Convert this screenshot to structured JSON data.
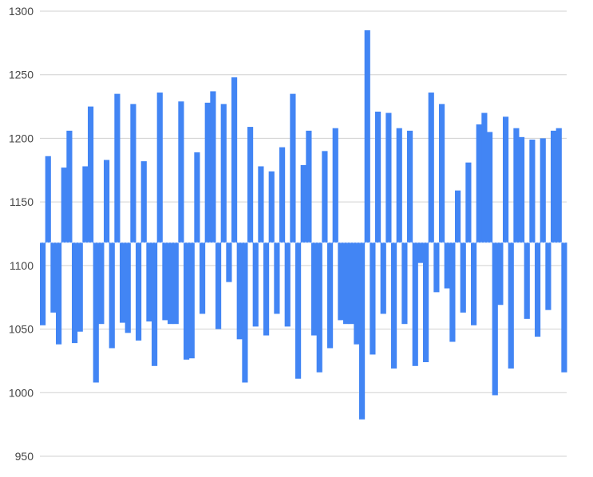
{
  "chart_data": {
    "type": "bar",
    "title": "",
    "xlabel": "",
    "ylabel": "",
    "ylim": [
      950,
      1300
    ],
    "yticks": [
      950,
      1000,
      1050,
      1100,
      1150,
      1200,
      1250,
      1300
    ],
    "grid": true,
    "baseline": 1118,
    "series": [
      {
        "color": "#4285f4",
        "values": [
          1053,
          1186,
          1063,
          1038,
          1177,
          1206,
          1039,
          1048,
          1178,
          1225,
          1008,
          1054,
          1183,
          1035,
          1235,
          1055,
          1047,
          1227,
          1041,
          1182,
          1056,
          1021,
          1236,
          1057,
          1054,
          1054,
          1229,
          1026,
          1027,
          1189,
          1062,
          1228,
          1237,
          1050,
          1227,
          1087,
          1248,
          1042,
          1008,
          1209,
          1052,
          1178,
          1045,
          1174,
          1062,
          1193,
          1052,
          1235,
          1011,
          1179,
          1206,
          1045,
          1016,
          1190,
          1035,
          1208,
          1057,
          1054,
          1054,
          1038,
          979,
          1285,
          1030,
          1221,
          1062,
          1220,
          1019,
          1208,
          1054,
          1206,
          1021,
          1102,
          1024,
          1236,
          1079,
          1227,
          1082,
          1040,
          1159,
          1063,
          1181,
          1053,
          1211,
          1220,
          1205,
          998,
          1069,
          1217,
          1019,
          1208,
          1201,
          1058,
          1199,
          1044,
          1200,
          1065,
          1206,
          1208,
          1016
        ]
      }
    ]
  }
}
